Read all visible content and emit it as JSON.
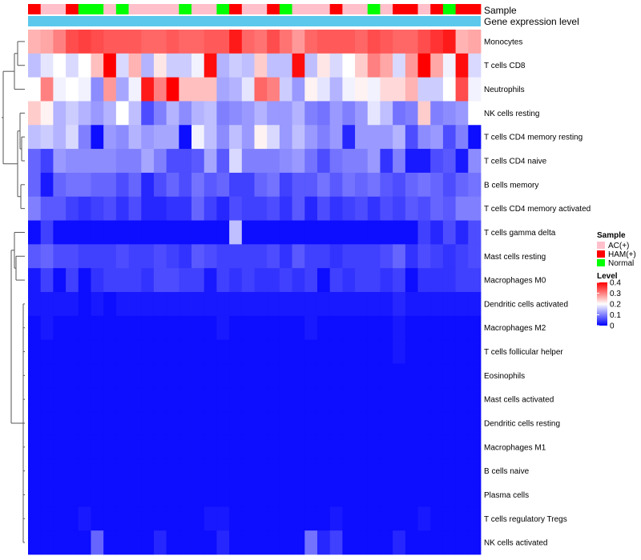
{
  "chart_data": {
    "type": "heatmap",
    "annotation_labels": [
      "Sample",
      "Gene expression level"
    ],
    "sample_groups": [
      "HAM(+)",
      "AC(+)",
      "AC(+)",
      "HAM(+)",
      "Normal",
      "Normal",
      "AC(+)",
      "Normal",
      "AC(+)",
      "AC(+)",
      "AC(+)",
      "AC(+)",
      "Normal",
      "AC(+)",
      "AC(+)",
      "Normal",
      "HAM(+)",
      "AC(+)",
      "AC(+)",
      "HAM(+)",
      "Normal",
      "AC(+)",
      "AC(+)",
      "AC(+)",
      "HAM(+)",
      "AC(+)",
      "AC(+)",
      "Normal",
      "AC(+)",
      "HAM(+)",
      "HAM(+)",
      "AC(+)",
      "HAM(+)",
      "Normal",
      "HAM(+)",
      "HAM(+)"
    ],
    "row_labels": [
      "Monocytes",
      "T cells CD8",
      "Neutrophils",
      "NK cells resting",
      "T cells CD4 memory resting",
      "T cells CD4 naive",
      "B cells memory",
      "T cells CD4 memory activated",
      "T cells gamma delta",
      "Mast cells resting",
      "Macrophages M0",
      "Dendritic cells activated",
      "Macrophages M2",
      "T cells follicular helper",
      "Eosinophils",
      "Mast cells activated",
      "Dendritic cells resting",
      "Macrophages M1",
      "B cells naive",
      "Plasma cells",
      "T cells regulatory  Tregs",
      "NK cells activated"
    ],
    "values": [
      [
        0.26,
        0.27,
        0.3,
        0.34,
        0.35,
        0.34,
        0.33,
        0.33,
        0.33,
        0.32,
        0.32,
        0.33,
        0.32,
        0.32,
        0.33,
        0.33,
        0.38,
        0.32,
        0.31,
        0.34,
        0.31,
        0.28,
        0.32,
        0.33,
        0.33,
        0.33,
        0.32,
        0.34,
        0.33,
        0.32,
        0.32,
        0.34,
        0.36,
        0.38,
        0.26,
        0.27
      ],
      [
        0.15,
        0.18,
        0.2,
        0.17,
        0.2,
        0.25,
        0.4,
        0.17,
        0.26,
        0.14,
        0.22,
        0.16,
        0.16,
        0.19,
        0.39,
        0.14,
        0.16,
        0.15,
        0.24,
        0.15,
        0.15,
        0.39,
        0.15,
        0.22,
        0.17,
        0.2,
        0.24,
        0.3,
        0.27,
        0.17,
        0.28,
        0.4,
        0.27,
        0.19,
        0.39,
        0.17
      ],
      [
        0.2,
        0.3,
        0.19,
        0.2,
        0.19,
        0.11,
        0.28,
        0.13,
        0.19,
        0.38,
        0.3,
        0.4,
        0.25,
        0.25,
        0.25,
        0.13,
        0.14,
        0.18,
        0.32,
        0.3,
        0.16,
        0.12,
        0.21,
        0.18,
        0.14,
        0.19,
        0.21,
        0.19,
        0.23,
        0.23,
        0.26,
        0.16,
        0.16,
        0.2,
        0.34,
        0.19
      ],
      [
        0.24,
        0.21,
        0.14,
        0.16,
        0.14,
        0.12,
        0.14,
        0.2,
        0.15,
        0.06,
        0.1,
        0.14,
        0.11,
        0.14,
        0.15,
        0.1,
        0.11,
        0.12,
        0.14,
        0.12,
        0.12,
        0.14,
        0.1,
        0.09,
        0.12,
        0.1,
        0.12,
        0.18,
        0.15,
        0.09,
        0.1,
        0.24,
        0.1,
        0.11,
        0.12,
        0.2
      ],
      [
        0.15,
        0.16,
        0.14,
        0.17,
        0.1,
        0.01,
        0.12,
        0.11,
        0.14,
        0.12,
        0.13,
        0.13,
        0.01,
        0.19,
        0.15,
        0.11,
        0.15,
        0.12,
        0.21,
        0.17,
        0.12,
        0.15,
        0.12,
        0.1,
        0.12,
        0.03,
        0.12,
        0.12,
        0.12,
        0.14,
        0.06,
        0.11,
        0.12,
        0.06,
        0.1,
        0.01
      ],
      [
        0.08,
        0.05,
        0.12,
        0.11,
        0.11,
        0.11,
        0.11,
        0.1,
        0.1,
        0.13,
        0.1,
        0.06,
        0.06,
        0.07,
        0.13,
        0.07,
        0.17,
        0.1,
        0.1,
        0.1,
        0.11,
        0.12,
        0.09,
        0.06,
        0.09,
        0.1,
        0.1,
        0.12,
        0.04,
        0.1,
        0.02,
        0.02,
        0.06,
        0.07,
        0.02,
        0.11
      ],
      [
        0.08,
        0.02,
        0.08,
        0.09,
        0.09,
        0.08,
        0.08,
        0.06,
        0.08,
        0.03,
        0.06,
        0.08,
        0.06,
        0.09,
        0.07,
        0.08,
        0.05,
        0.05,
        0.08,
        0.09,
        0.05,
        0.07,
        0.07,
        0.09,
        0.07,
        0.09,
        0.08,
        0.09,
        0.07,
        0.06,
        0.08,
        0.09,
        0.08,
        0.06,
        0.08,
        0.09
      ],
      [
        0.1,
        0.07,
        0.07,
        0.05,
        0.04,
        0.05,
        0.06,
        0.04,
        0.06,
        0.03,
        0.03,
        0.04,
        0.04,
        0.08,
        0.05,
        0.03,
        0.06,
        0.05,
        0.05,
        0.06,
        0.04,
        0.07,
        0.03,
        0.06,
        0.04,
        0.05,
        0.06,
        0.04,
        0.06,
        0.05,
        0.07,
        0.06,
        0.08,
        0.07,
        0.1,
        0.1
      ],
      [
        0.01,
        0.05,
        0.01,
        0.01,
        0.01,
        0.01,
        0.01,
        0.01,
        0.01,
        0.01,
        0.01,
        0.01,
        0.01,
        0.01,
        0.01,
        0.01,
        0.15,
        0.01,
        0.01,
        0.01,
        0.01,
        0.01,
        0.01,
        0.01,
        0.01,
        0.01,
        0.01,
        0.01,
        0.01,
        0.01,
        0.01,
        0.05,
        0.03,
        0.06,
        0.03,
        0.06
      ],
      [
        0.07,
        0.08,
        0.06,
        0.06,
        0.05,
        0.05,
        0.05,
        0.06,
        0.05,
        0.05,
        0.06,
        0.05,
        0.04,
        0.07,
        0.06,
        0.05,
        0.05,
        0.05,
        0.05,
        0.06,
        0.04,
        0.07,
        0.05,
        0.05,
        0.04,
        0.05,
        0.05,
        0.05,
        0.06,
        0.08,
        0.04,
        0.06,
        0.05,
        0.04,
        0.05,
        0.06
      ],
      [
        0.02,
        0.05,
        0.01,
        0.05,
        0.01,
        0.04,
        0.05,
        0.05,
        0.05,
        0.04,
        0.06,
        0.06,
        0.05,
        0.05,
        0.02,
        0.05,
        0.04,
        0.05,
        0.04,
        0.04,
        0.05,
        0.04,
        0.05,
        0.01,
        0.05,
        0.04,
        0.05,
        0.05,
        0.04,
        0.05,
        0.01,
        0.04,
        0.04,
        0.04,
        0.05,
        0.05
      ],
      [
        0.02,
        0.02,
        0.02,
        0.02,
        0.01,
        0.02,
        0.01,
        0.02,
        0.02,
        0.02,
        0.02,
        0.02,
        0.02,
        0.02,
        0.02,
        0.02,
        0.02,
        0.02,
        0.02,
        0.02,
        0.02,
        0.02,
        0.02,
        0.02,
        0.02,
        0.02,
        0.02,
        0.02,
        0.02,
        0.03,
        0.02,
        0.02,
        0.02,
        0.02,
        0.02,
        0.02
      ],
      [
        0.01,
        0.02,
        0.01,
        0.01,
        0.01,
        0.01,
        0.01,
        0.01,
        0.01,
        0.01,
        0.01,
        0.01,
        0.01,
        0.01,
        0.01,
        0.02,
        0.01,
        0.01,
        0.01,
        0.01,
        0.01,
        0.01,
        0.02,
        0.01,
        0.01,
        0.01,
        0.01,
        0.01,
        0.01,
        0.02,
        0.01,
        0.01,
        0.01,
        0.01,
        0.01,
        0.01
      ],
      [
        0.01,
        0.01,
        0.01,
        0.01,
        0.01,
        0.01,
        0.01,
        0.01,
        0.01,
        0.01,
        0.01,
        0.01,
        0.01,
        0.01,
        0.01,
        0.01,
        0.01,
        0.01,
        0.01,
        0.01,
        0.01,
        0.01,
        0.01,
        0.01,
        0.01,
        0.01,
        0.01,
        0.01,
        0.01,
        0.02,
        0.01,
        0.01,
        0.01,
        0.01,
        0.01,
        0.01
      ],
      [
        0.01,
        0.01,
        0.01,
        0.01,
        0.01,
        0.01,
        0.01,
        0.01,
        0.01,
        0.01,
        0.01,
        0.01,
        0.01,
        0.01,
        0.01,
        0.01,
        0.01,
        0.01,
        0.01,
        0.01,
        0.01,
        0.01,
        0.01,
        0.01,
        0.01,
        0.01,
        0.01,
        0.01,
        0.01,
        0.01,
        0.01,
        0.01,
        0.01,
        0.01,
        0.01,
        0.01
      ],
      [
        0.01,
        0.01,
        0.01,
        0.01,
        0.01,
        0.01,
        0.01,
        0.01,
        0.01,
        0.01,
        0.01,
        0.01,
        0.01,
        0.01,
        0.01,
        0.01,
        0.01,
        0.01,
        0.01,
        0.01,
        0.01,
        0.01,
        0.01,
        0.01,
        0.01,
        0.01,
        0.01,
        0.01,
        0.01,
        0.01,
        0.01,
        0.01,
        0.01,
        0.01,
        0.01,
        0.01
      ],
      [
        0.01,
        0.01,
        0.01,
        0.01,
        0.01,
        0.01,
        0.01,
        0.01,
        0.01,
        0.01,
        0.01,
        0.01,
        0.01,
        0.01,
        0.01,
        0.01,
        0.01,
        0.01,
        0.01,
        0.01,
        0.01,
        0.01,
        0.01,
        0.01,
        0.01,
        0.01,
        0.01,
        0.01,
        0.01,
        0.01,
        0.01,
        0.01,
        0.01,
        0.01,
        0.01,
        0.01
      ],
      [
        0.01,
        0.01,
        0.01,
        0.01,
        0.01,
        0.01,
        0.01,
        0.01,
        0.01,
        0.01,
        0.01,
        0.01,
        0.01,
        0.01,
        0.01,
        0.01,
        0.01,
        0.01,
        0.01,
        0.01,
        0.01,
        0.01,
        0.01,
        0.01,
        0.01,
        0.01,
        0.01,
        0.01,
        0.01,
        0.01,
        0.01,
        0.01,
        0.01,
        0.01,
        0.01,
        0.01
      ],
      [
        0.01,
        0.01,
        0.01,
        0.01,
        0.01,
        0.01,
        0.01,
        0.01,
        0.01,
        0.01,
        0.01,
        0.01,
        0.01,
        0.01,
        0.01,
        0.01,
        0.01,
        0.01,
        0.01,
        0.01,
        0.01,
        0.01,
        0.01,
        0.01,
        0.01,
        0.01,
        0.01,
        0.01,
        0.01,
        0.01,
        0.01,
        0.01,
        0.01,
        0.01,
        0.01,
        0.01
      ],
      [
        0.01,
        0.01,
        0.01,
        0.01,
        0.01,
        0.01,
        0.01,
        0.01,
        0.01,
        0.01,
        0.01,
        0.01,
        0.01,
        0.01,
        0.01,
        0.01,
        0.01,
        0.01,
        0.01,
        0.01,
        0.01,
        0.01,
        0.01,
        0.01,
        0.01,
        0.01,
        0.01,
        0.01,
        0.01,
        0.01,
        0.01,
        0.01,
        0.01,
        0.01,
        0.01,
        0.01
      ],
      [
        0.01,
        0.01,
        0.01,
        0.01,
        0.02,
        0.01,
        0.01,
        0.01,
        0.01,
        0.01,
        0.01,
        0.01,
        0.01,
        0.01,
        0.02,
        0.02,
        0.01,
        0.01,
        0.01,
        0.01,
        0.01,
        0.01,
        0.01,
        0.01,
        0.02,
        0.01,
        0.01,
        0.01,
        0.01,
        0.01,
        0.01,
        0.02,
        0.01,
        0.01,
        0.01,
        0.01
      ],
      [
        0.01,
        0.01,
        0.01,
        0.01,
        0.01,
        0.08,
        0.01,
        0.01,
        0.01,
        0.01,
        0.03,
        0.01,
        0.01,
        0.01,
        0.01,
        0.03,
        0.01,
        0.01,
        0.01,
        0.01,
        0.01,
        0.01,
        0.09,
        0.03,
        0.05,
        0.01,
        0.01,
        0.01,
        0.01,
        0.03,
        0.01,
        0.01,
        0.01,
        0.01,
        0.01,
        0.01
      ]
    ],
    "color_scale": {
      "min": 0,
      "mid": 0.2,
      "max": 0.4,
      "low": "#0000FF",
      "mid_color": "#FFFFFF",
      "high": "#FF0000"
    },
    "legend": {
      "sample_title": "Sample",
      "sample_entries": [
        {
          "label": "AC(+)",
          "color": "#FFC0CB"
        },
        {
          "label": "HAM(+)",
          "color": "#FF0000"
        },
        {
          "label": "Normal",
          "color": "#00FF00"
        }
      ],
      "level_title": "Level",
      "level_ticks": [
        "0.4",
        "0.3",
        "0.2",
        "0.1",
        "0"
      ],
      "level_tick_values": [
        0.4,
        0.3,
        0.2,
        0.1,
        0
      ],
      "position": "right"
    },
    "gene_expression_color": "#5BC8EC"
  }
}
